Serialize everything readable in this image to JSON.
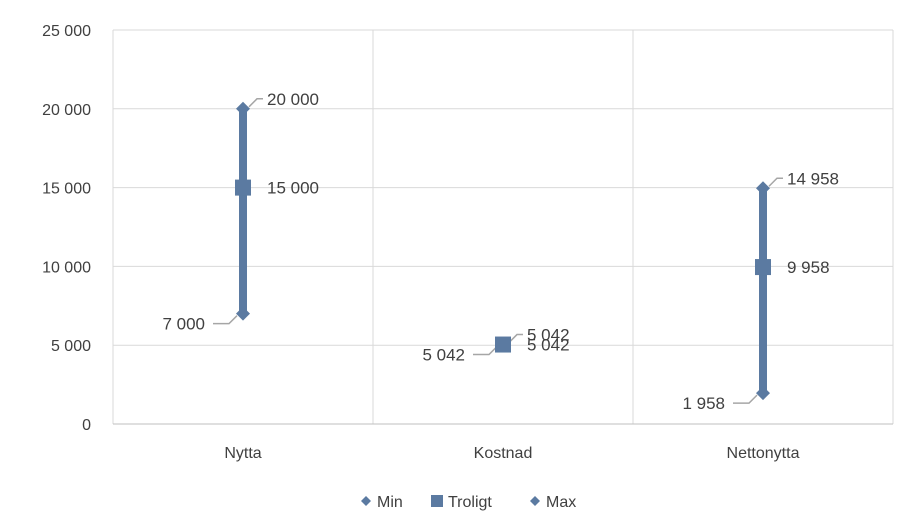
{
  "chart_data": {
    "type": "line",
    "title": "",
    "xlabel": "",
    "ylabel": "",
    "ylim": [
      0,
      25000
    ],
    "y_ticks": [
      0,
      5000,
      10000,
      15000,
      20000,
      25000
    ],
    "y_tick_labels": [
      "0",
      "5 000",
      "10 000",
      "15 000",
      "20 000",
      "25 000"
    ],
    "grid": true,
    "legend_position": "bottom",
    "categories": [
      "Nytta",
      "Kostnad",
      "Nettonytta"
    ],
    "series": [
      {
        "name": "Min",
        "marker": "diamond",
        "values": [
          7000,
          5042,
          1958
        ],
        "labels": [
          "7 000",
          "5 042",
          "1 958"
        ]
      },
      {
        "name": "Troligt",
        "marker": "square",
        "values": [
          15000,
          5042,
          9958
        ],
        "labels": [
          "15 000",
          "5 042",
          "9 958"
        ]
      },
      {
        "name": "Max",
        "marker": "diamond",
        "values": [
          20000,
          5042,
          14958
        ],
        "labels": [
          "20 000",
          "5 042",
          "14 958"
        ]
      }
    ],
    "colors": {
      "series": "#5b7aa1",
      "bar": "#5b7aa1",
      "grid": "#d9d9d9",
      "axis": "#bfbfbf",
      "text": "#404040",
      "leader": "#a6a6a6"
    }
  }
}
